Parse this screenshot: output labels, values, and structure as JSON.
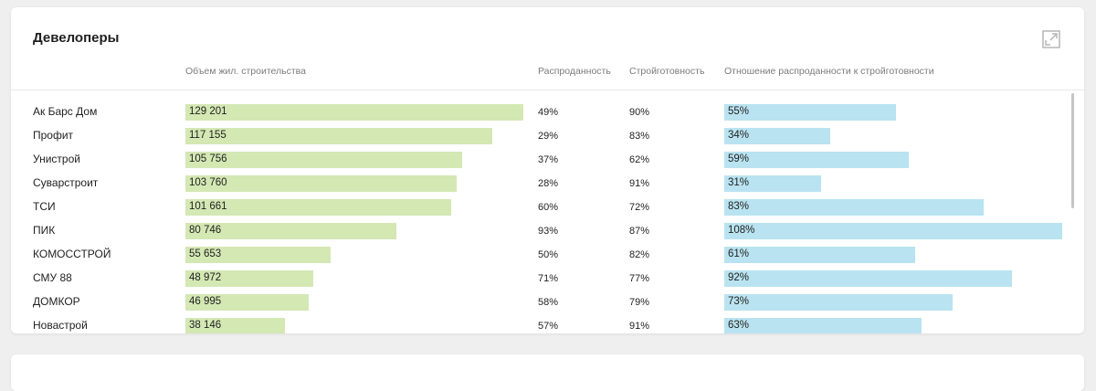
{
  "panel": {
    "title": "Девелоперы",
    "expand_icon": "expand-icon",
    "columns": {
      "volume": "Объем жил. строительства",
      "sold": "Распроданность",
      "readiness": "Стройготовность",
      "ratio": "Отношение распроданности к стройготовности"
    }
  },
  "developers": [
    {
      "name": "Ак Барс Дом",
      "volume": "129 201",
      "sold": "49%",
      "readiness": "90%",
      "ratio": "55%",
      "volume_value": 129201,
      "ratio_value": 55
    },
    {
      "name": "Профит",
      "volume": "117 155",
      "sold": "29%",
      "readiness": "83%",
      "ratio": "34%",
      "volume_value": 117155,
      "ratio_value": 34
    },
    {
      "name": "Унистрой",
      "volume": "105 756",
      "sold": "37%",
      "readiness": "62%",
      "ratio": "59%",
      "volume_value": 105756,
      "ratio_value": 59
    },
    {
      "name": "Суварстроит",
      "volume": "103 760",
      "sold": "28%",
      "readiness": "91%",
      "ratio": "31%",
      "volume_value": 103760,
      "ratio_value": 31
    },
    {
      "name": "ТСИ",
      "volume": "101 661",
      "sold": "60%",
      "readiness": "72%",
      "ratio": "83%",
      "volume_value": 101661,
      "ratio_value": 83
    },
    {
      "name": "ПИК",
      "volume": "80 746",
      "sold": "93%",
      "readiness": "87%",
      "ratio": "108%",
      "volume_value": 80746,
      "ratio_value": 108
    },
    {
      "name": "КОМОССТРОЙ",
      "volume": "55 653",
      "sold": "50%",
      "readiness": "82%",
      "ratio": "61%",
      "volume_value": 55653,
      "ratio_value": 61
    },
    {
      "name": "СМУ 88",
      "volume": "48 972",
      "sold": "71%",
      "readiness": "77%",
      "ratio": "92%",
      "volume_value": 48972,
      "ratio_value": 92
    },
    {
      "name": "ДОМКОР",
      "volume": "46 995",
      "sold": "58%",
      "readiness": "79%",
      "ratio": "73%",
      "volume_value": 46995,
      "ratio_value": 73
    },
    {
      "name": "Новастрой",
      "volume": "38 146",
      "sold": "57%",
      "readiness": "91%",
      "ratio": "63%",
      "volume_value": 38146,
      "ratio_value": 63
    }
  ],
  "colors": {
    "volume_bar": "#d4e8b4",
    "ratio_bar": "#b9e3f0"
  }
}
